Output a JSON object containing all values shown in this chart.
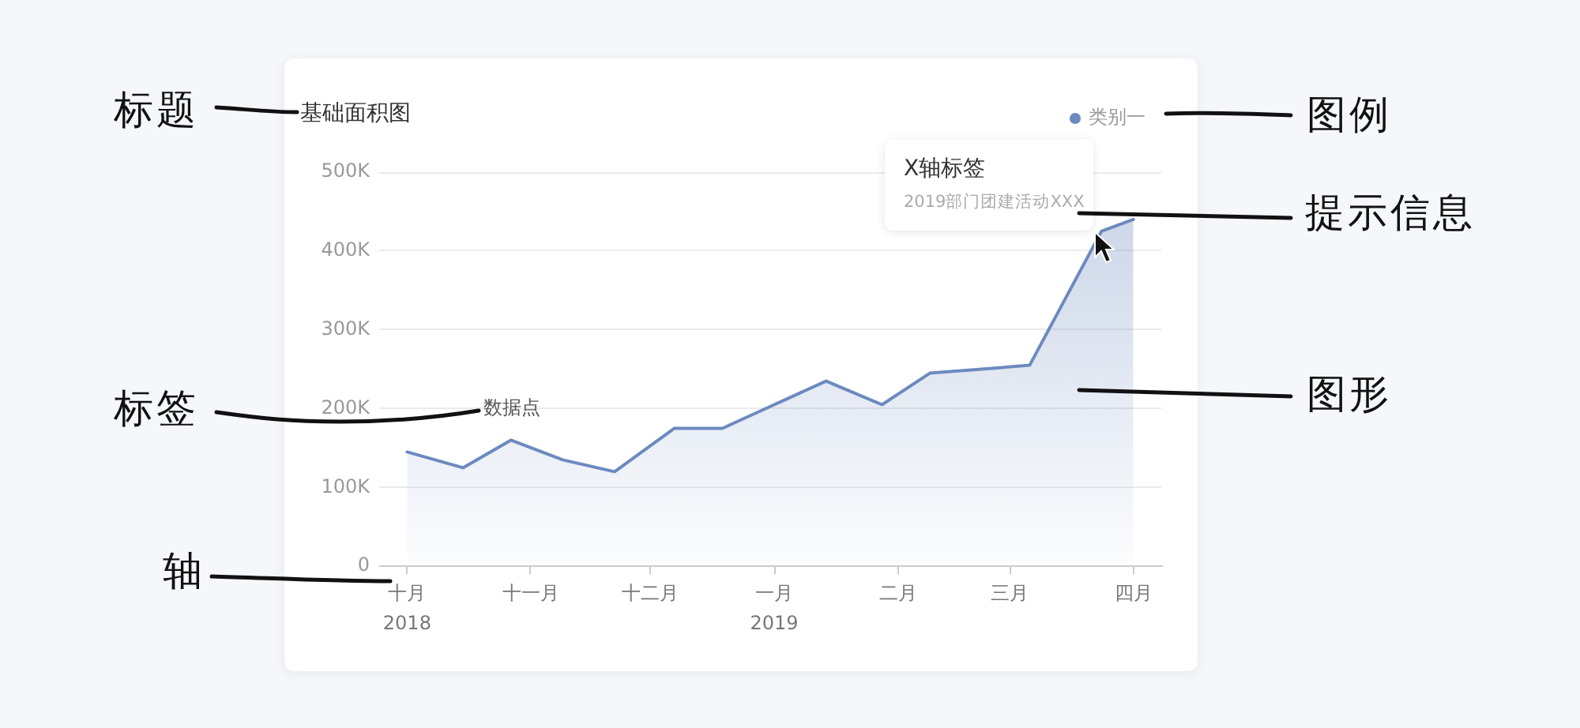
{
  "chart_data": {
    "type": "area",
    "title": "基础面积图",
    "x": [
      "2018-10-01",
      "2018-10-15",
      "2018-10-27",
      "2018-11-09",
      "2018-11-22",
      "2018-12-07",
      "2018-12-19",
      "2019-01-01",
      "2019-01-14",
      "2019-01-28",
      "2019-02-09",
      "2019-02-22",
      "2019-03-06",
      "2019-03-24",
      "2019-04-01"
    ],
    "series": [
      {
        "name": "类别一",
        "color": "#6c8abf",
        "values": [
          145000,
          125000,
          160000,
          135000,
          120000,
          175000,
          175000,
          205000,
          235000,
          205000,
          245000,
          250000,
          255000,
          425000,
          440000
        ]
      }
    ],
    "xlim": [
      "2018-09-24",
      "2019-04-08"
    ],
    "xticks": [
      {
        "value": "2018-10-01",
        "label": "十月\n2018"
      },
      {
        "value": "2018-11-01",
        "label": "十一月"
      },
      {
        "value": "2018-12-01",
        "label": "十二月"
      },
      {
        "value": "2019-01-01",
        "label": "一月\n2019"
      },
      {
        "value": "2019-02-01",
        "label": "二月"
      },
      {
        "value": "2019-03-01",
        "label": "三月"
      },
      {
        "value": "2019-04-01",
        "label": "四月"
      }
    ],
    "ylim": [
      0,
      500000
    ],
    "yticks": [
      0,
      {
        "value": 100000,
        "label": "100K"
      },
      {
        "value": 200000,
        "label": "200K"
      },
      {
        "value": 300000,
        "label": "300K"
      },
      {
        "value": 400000,
        "label": "400K"
      },
      {
        "value": 500000,
        "label": "500K"
      }
    ],
    "grid": "y",
    "legend": "top right",
    "marker": "none",
    "annotations": [
      "标题",
      "图例",
      "提示信息",
      "标签",
      "图形",
      "轴",
      "数据点",
      "X轴标签",
      "2019部门团建活动XXX"
    ]
  }
}
